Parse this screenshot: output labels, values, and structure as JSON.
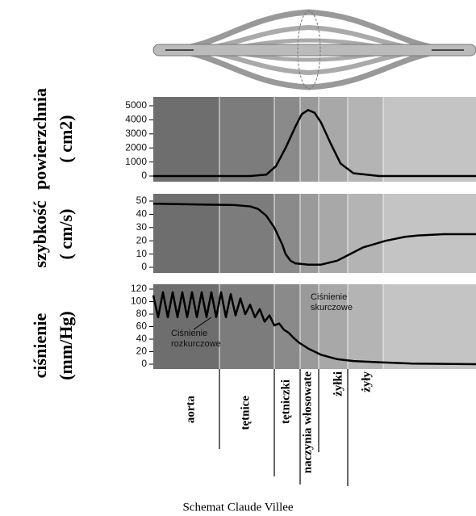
{
  "chart_data": [
    {
      "type": "line",
      "ylabel": [
        "powierzchnia",
        "( cm2)"
      ],
      "x": [
        0,
        30,
        35,
        38,
        41,
        44,
        46,
        48,
        50,
        52,
        55,
        58,
        62,
        70,
        100
      ],
      "xlim": [
        0,
        100
      ],
      "series": [
        {
          "color": "#000000",
          "values": [
            0,
            0,
            100,
            700,
            2000,
            3500,
            4400,
            4700,
            4500,
            3800,
            2300,
            900,
            200,
            0,
            0
          ]
        }
      ],
      "ylim": [
        0,
        5000
      ],
      "yticks": [
        0,
        1000,
        2000,
        3000,
        4000,
        5000
      ]
    },
    {
      "type": "line",
      "ylabel": [
        "szybkość",
        "( cm/s)"
      ],
      "x": [
        0,
        25,
        30,
        32.5,
        35,
        37.5,
        40,
        41,
        42.5,
        44,
        48,
        52,
        57,
        61,
        65,
        72,
        78,
        82,
        90,
        100
      ],
      "xlim": [
        0,
        100
      ],
      "series": [
        {
          "color": "#000000",
          "values": [
            48,
            47,
            46,
            44,
            39,
            30,
            17,
            10,
            5,
            3,
            2,
            2,
            5,
            10,
            15,
            20,
            23,
            24,
            25,
            25
          ]
        }
      ],
      "ylim": [
        0,
        50
      ],
      "yticks": [
        0,
        10,
        20,
        30,
        40,
        50
      ]
    },
    {
      "type": "line",
      "ylabel": [
        "ciśnienie",
        "(mm/Hg)"
      ],
      "x": [
        0,
        1.5,
        3,
        4.5,
        6,
        7.5,
        9,
        10.5,
        12,
        13.5,
        15,
        16.5,
        18,
        19.5,
        21,
        22.5,
        24,
        25.5,
        27,
        28.5,
        30,
        31.5,
        33,
        34.5,
        36,
        37.5,
        39,
        40.5,
        42,
        43.5,
        45,
        48,
        52,
        57,
        62,
        70,
        80,
        100
      ],
      "xlim": [
        0,
        100
      ],
      "series": [
        {
          "color": "#000000",
          "values": [
            110,
            75,
            115,
            75,
            115,
            75,
            115,
            75,
            115,
            75,
            115,
            75,
            115,
            75,
            115,
            75,
            112,
            78,
            105,
            80,
            95,
            75,
            88,
            68,
            78,
            62,
            65,
            55,
            50,
            42,
            35,
            25,
            15,
            8,
            5,
            3,
            1,
            0
          ]
        }
      ],
      "ylim": [
        0,
        120
      ],
      "yticks": [
        0,
        20,
        40,
        60,
        80,
        100,
        120
      ],
      "annotations": [
        {
          "lines": [
            "Ciśnienie",
            "skurczowe"
          ]
        },
        {
          "lines": [
            "Ciśnienie",
            "rozkurczowe"
          ]
        }
      ]
    }
  ],
  "segments": [
    "aorta",
    "tętnice",
    "tętniczki",
    "naczynia włosowate",
    "żyłki",
    "żyły"
  ],
  "caption": "Schemat Claude Villee"
}
